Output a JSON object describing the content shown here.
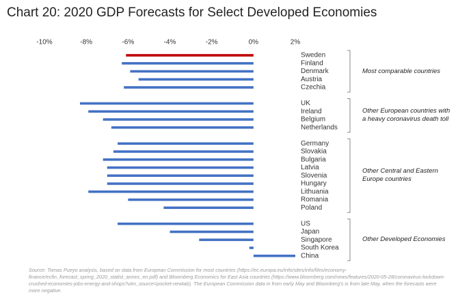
{
  "chart_data": {
    "type": "grouped-hbar",
    "title": "Chart 20: 2020 GDP Forecasts for Select Developed Economies",
    "xlim": [
      -10,
      2
    ],
    "xticks": [
      {
        "value": -10,
        "label": "-10%"
      },
      {
        "value": -8,
        "label": "-8%"
      },
      {
        "value": -6,
        "label": "-6%"
      },
      {
        "value": -4,
        "label": "-4%"
      },
      {
        "value": -2,
        "label": "-2%"
      },
      {
        "value": 0,
        "label": "0%"
      },
      {
        "value": 2,
        "label": "2%"
      }
    ],
    "groups": [
      {
        "label": "Most comparable countries",
        "categories": [
          "Sweden",
          "Finland",
          "Denmark",
          "Austria",
          "Czechia"
        ],
        "values": [
          -6.1,
          -6.3,
          -5.9,
          -5.5,
          -6.2
        ],
        "colors": [
          "#c00000",
          "#4472c4",
          "#4472c4",
          "#4472c4",
          "#4472c4"
        ]
      },
      {
        "label": "Other European countries with a heavy coronavirus death toll",
        "categories": [
          "UK",
          "Ireland",
          "Belgium",
          "Netherlands"
        ],
        "values": [
          -8.3,
          -7.9,
          -7.2,
          -6.8
        ],
        "colors": [
          "#4472c4",
          "#4472c4",
          "#4472c4",
          "#4472c4"
        ]
      },
      {
        "label": "Other Central and Eastern Europe countries",
        "categories": [
          "Germany",
          "Slovakia",
          "Bulgaria",
          "Latvia",
          "Slovenia",
          "Hungary",
          "Lithuania",
          "Romania",
          "Poland"
        ],
        "values": [
          -6.5,
          -6.7,
          -7.2,
          -7.0,
          -7.0,
          -7.0,
          -7.9,
          -6.0,
          -4.3
        ],
        "colors": [
          "#4472c4",
          "#4472c4",
          "#4472c4",
          "#4472c4",
          "#4472c4",
          "#4472c4",
          "#4472c4",
          "#4472c4",
          "#4472c4"
        ]
      },
      {
        "label": "Other Developed Economies",
        "categories": [
          "US",
          "Japan",
          "Singapore",
          "South Korea",
          "China"
        ],
        "values": [
          -6.5,
          -4.0,
          -2.6,
          -0.2,
          2.0
        ],
        "colors": [
          "#4472c4",
          "#4472c4",
          "#4472c4",
          "#4472c4",
          "#4472c4"
        ]
      }
    ],
    "source": "Source: Tomas Pueyo analysis, based on data from European Commission for most countries (https://ec.europa.eu/info/sites/info/files/economy-finance/ecfin_forecast_spring_2020_statist_annex_en.pdf) and Bloomberg Economics for East Asia countries (https://www.bloomberg.com/news/features/2020-05-28/coronavirus-lockdown-crushed-economies-jobs-energy-and-shops?utm_source=pocket-newtab). The European Commission data in from early May and Bloomberg's is from late May, when the forecasts were more negative."
  }
}
